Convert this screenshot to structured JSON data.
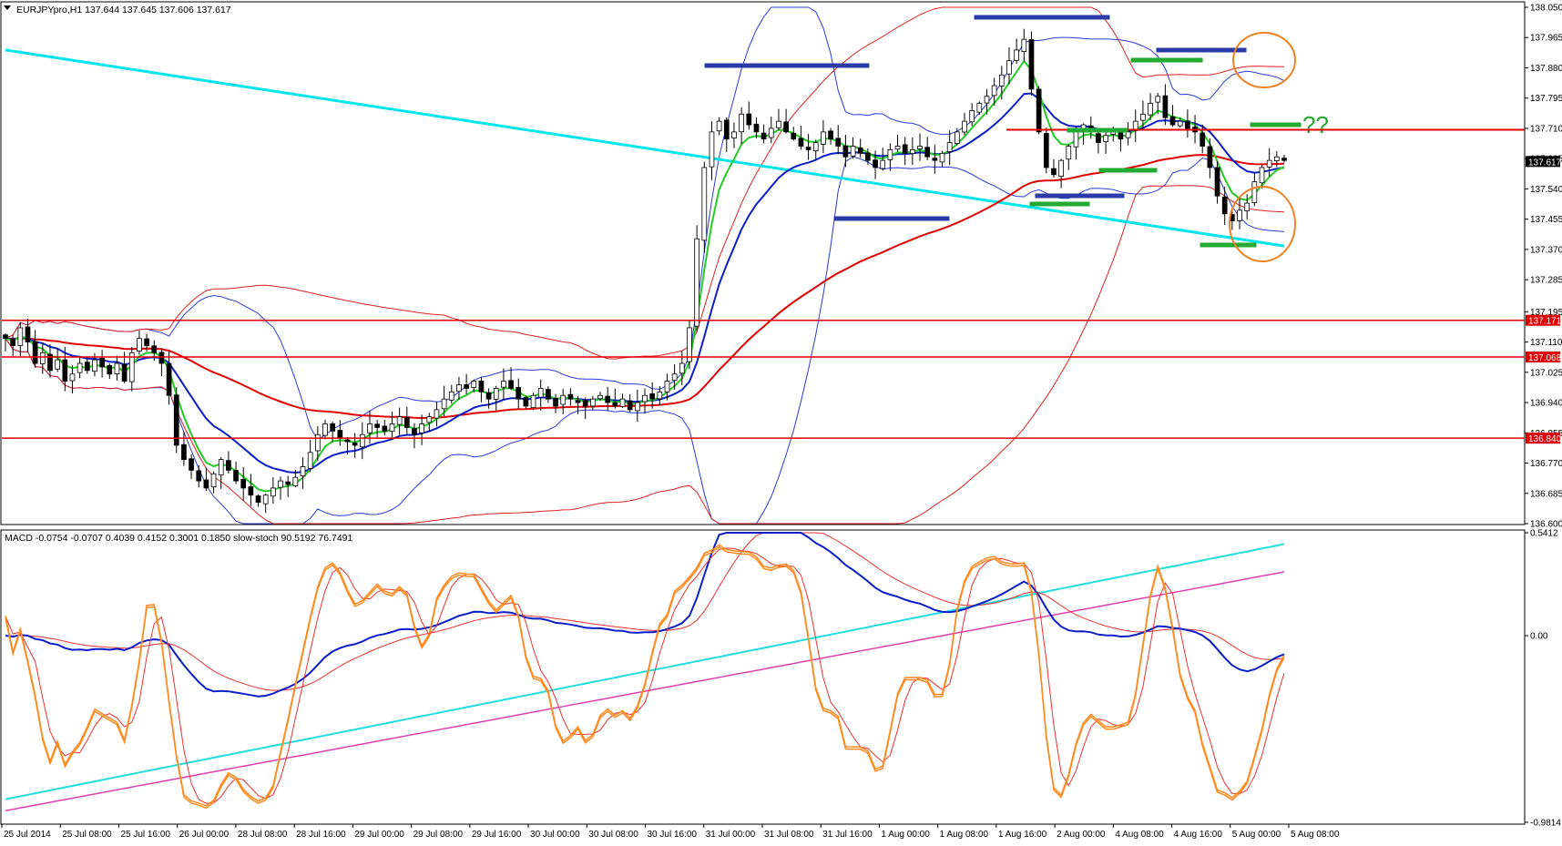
{
  "colors": {
    "bull_body": "#ffffff",
    "bear_body": "#000000",
    "candle_line": "#000000",
    "sma_long": "#00e5ee",
    "ma_red": "#e00000",
    "ma_blue": "#0a1fc8",
    "ma_green": "#22cc22",
    "bb_blue": "#2a3ad8",
    "bb_red": "#e02020",
    "resistance": "#e00000",
    "level_label_bg": "#e00000",
    "current_label_bg": "#000000",
    "annotation_orange": "#f08020",
    "annotation_blue": "#2a3aa8",
    "annotation_green": "#22aa33",
    "stoch_main": "#ff8a1e",
    "stoch_signal": "#ee3030",
    "macd_blue": "#0a1fc8",
    "macd_red": "#ee3030",
    "macd_cyan": "#22dddd",
    "macd_magenta": "#e040b0"
  },
  "chart_data": [
    {
      "type": "candlestick",
      "header": "EURJPYpro,H1  137.644 137.645 137.606 137.617",
      "ylim": [
        136.6,
        138.05
      ],
      "yticks": [
        "138.050",
        "137.965",
        "137.880",
        "137.795",
        "137.710",
        "137.625",
        "137.540",
        "137.455",
        "137.370",
        "137.285",
        "137.195",
        "137.110",
        "137.025",
        "136.940",
        "136.855",
        "136.770",
        "136.685",
        "136.600"
      ],
      "xticks": [
        "25 Jul 2014",
        "25 Jul 08:00",
        "25 Jul 16:00",
        "26 Jul 00:00",
        "28 Jul 08:00",
        "28 Jul 16:00",
        "29 Jul 00:00",
        "29 Jul 08:00",
        "29 Jul 16:00",
        "30 Jul 00:00",
        "30 Jul 08:00",
        "30 Jul 16:00",
        "31 Jul 00:00",
        "31 Jul 08:00",
        "31 Jul 16:00",
        "1 Aug 00:00",
        "1 Aug 08:00",
        "1 Aug 16:00",
        "2 Aug 00:00",
        "4 Aug 08:00",
        "4 Aug 16:00",
        "5 Aug 00:00",
        "5 Aug 08:00"
      ],
      "horizontal_levels": [
        {
          "price": 137.171,
          "label": "137.171"
        },
        {
          "price": 137.068,
          "label": "137.068"
        },
        {
          "price": 136.84,
          "label": "136.840"
        },
        {
          "price": 137.706,
          "label": ""
        }
      ],
      "current_price": {
        "price": 137.617,
        "label": "137.617"
      },
      "annotation_text": "??",
      "closes": [
        137.12,
        137.1,
        137.15,
        137.11,
        137.05,
        137.08,
        137.03,
        137.06,
        137.0,
        137.02,
        137.05,
        137.03,
        137.06,
        137.04,
        137.02,
        137.05,
        137.0,
        137.08,
        137.12,
        137.1,
        137.08,
        137.05,
        136.96,
        136.82,
        136.78,
        136.75,
        136.72,
        136.7,
        136.74,
        136.78,
        136.75,
        136.72,
        136.7,
        136.68,
        136.66,
        136.68,
        136.7,
        136.72,
        136.71,
        136.73,
        136.76,
        136.8,
        136.85,
        136.88,
        136.86,
        136.84,
        136.83,
        136.82,
        136.85,
        136.88,
        136.87,
        136.86,
        136.88,
        136.9,
        136.87,
        136.85,
        136.88,
        136.9,
        136.92,
        136.95,
        136.97,
        136.99,
        136.98,
        137.0,
        136.97,
        136.95,
        136.98,
        137.0,
        136.98,
        136.95,
        136.93,
        136.96,
        136.98,
        136.95,
        136.93,
        136.96,
        136.95,
        136.94,
        136.93,
        136.95,
        136.96,
        136.94,
        136.93,
        136.95,
        136.92,
        136.94,
        136.96,
        136.95,
        136.97,
        137.0,
        137.02,
        137.05,
        137.15,
        137.4,
        137.6,
        137.7,
        137.73,
        137.68,
        137.7,
        137.75,
        137.72,
        137.7,
        137.68,
        137.71,
        137.73,
        137.7,
        137.68,
        137.66,
        137.65,
        137.67,
        137.7,
        137.68,
        137.66,
        137.63,
        137.66,
        137.64,
        137.62,
        137.6,
        137.62,
        137.65,
        137.66,
        137.64,
        137.65,
        137.66,
        137.63,
        137.62,
        137.64,
        137.67,
        137.7,
        137.73,
        137.76,
        137.78,
        137.8,
        137.83,
        137.86,
        137.9,
        137.93,
        137.96,
        137.82,
        137.7,
        137.6,
        137.58,
        137.62,
        137.66,
        137.7,
        137.72,
        137.7,
        137.67,
        137.69,
        137.7,
        137.68,
        137.7,
        137.73,
        137.75,
        137.78,
        137.8,
        137.74,
        137.72,
        137.73,
        137.71,
        137.7,
        137.66,
        137.6,
        137.52,
        137.47,
        137.45,
        137.48,
        137.5,
        137.56,
        137.6,
        137.62,
        137.63,
        137.62
      ]
    },
    {
      "type": "line",
      "header": "MACD -0.0754 -0.0707 0.4039 0.4152 0.3001 0.1850   slow-stoch 90.5192 76.7491",
      "yticks": [
        "0.5412",
        "0.00",
        "-0.9814"
      ],
      "ylim": [
        -0.9814,
        0.5412
      ]
    }
  ]
}
